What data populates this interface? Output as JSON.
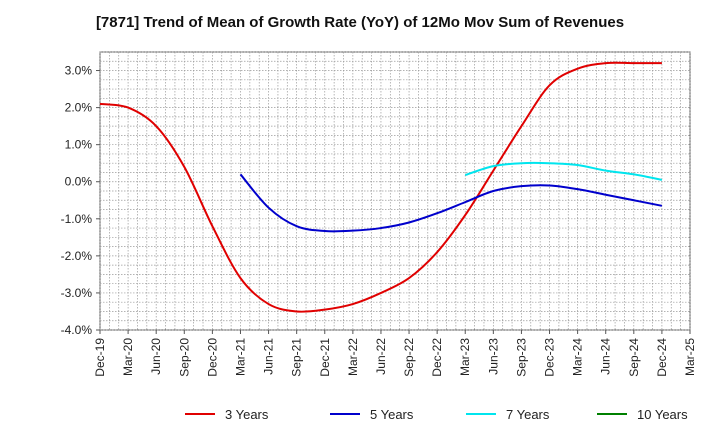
{
  "chart_data": {
    "type": "line",
    "title": "[7871]  Trend of Mean of Growth Rate (YoY) of 12Mo Mov Sum of Revenues",
    "xlabel": "",
    "ylabel": "",
    "ylim": [
      -4.0,
      3.5
    ],
    "y_ticks": [
      3.0,
      2.0,
      1.0,
      0.0,
      -1.0,
      -2.0,
      -3.0,
      -4.0
    ],
    "y_tick_labels": [
      "3.0%",
      "2.0%",
      "1.0%",
      "0.0%",
      "-1.0%",
      "-2.0%",
      "-3.0%",
      "-4.0%"
    ],
    "x_tick_labels": [
      "Dec-19",
      "Mar-20",
      "Jun-20",
      "Sep-20",
      "Dec-20",
      "Mar-21",
      "Jun-21",
      "Sep-21",
      "Dec-21",
      "Mar-22",
      "Jun-22",
      "Sep-22",
      "Dec-22",
      "Mar-23",
      "Jun-23",
      "Sep-23",
      "Dec-23",
      "Mar-24",
      "Jun-24",
      "Sep-24",
      "Dec-24",
      "Mar-25"
    ],
    "grid": true,
    "legend_position": "bottom",
    "series": [
      {
        "name": "3 Years",
        "color": "#e00000",
        "x": [
          0,
          1,
          2,
          3,
          4,
          5,
          6,
          7,
          8,
          9,
          10,
          11,
          12,
          13,
          14,
          15,
          16,
          17,
          18,
          19,
          20
        ],
        "values": [
          2.1,
          2.0,
          1.5,
          0.4,
          -1.2,
          -2.6,
          -3.3,
          -3.5,
          -3.45,
          -3.3,
          -3.0,
          -2.6,
          -1.9,
          -0.9,
          0.3,
          1.5,
          2.6,
          3.05,
          3.2,
          3.2,
          3.2
        ]
      },
      {
        "name": "5 Years",
        "color": "#0000cc",
        "x": [
          5,
          6,
          7,
          8,
          9,
          10,
          11,
          12,
          13,
          14,
          15,
          16,
          17,
          18,
          19,
          20
        ],
        "values": [
          0.2,
          -0.7,
          -1.2,
          -1.33,
          -1.32,
          -1.25,
          -1.1,
          -0.85,
          -0.55,
          -0.25,
          -0.12,
          -0.1,
          -0.2,
          -0.35,
          -0.5,
          -0.65
        ]
      },
      {
        "name": "7 Years",
        "color": "#00e5ee",
        "x": [
          13,
          14,
          15,
          16,
          17,
          18,
          19,
          20
        ],
        "values": [
          0.18,
          0.42,
          0.5,
          0.5,
          0.45,
          0.3,
          0.2,
          0.05
        ]
      },
      {
        "name": "10 Years",
        "color": "#008000",
        "x": [],
        "values": []
      }
    ]
  }
}
